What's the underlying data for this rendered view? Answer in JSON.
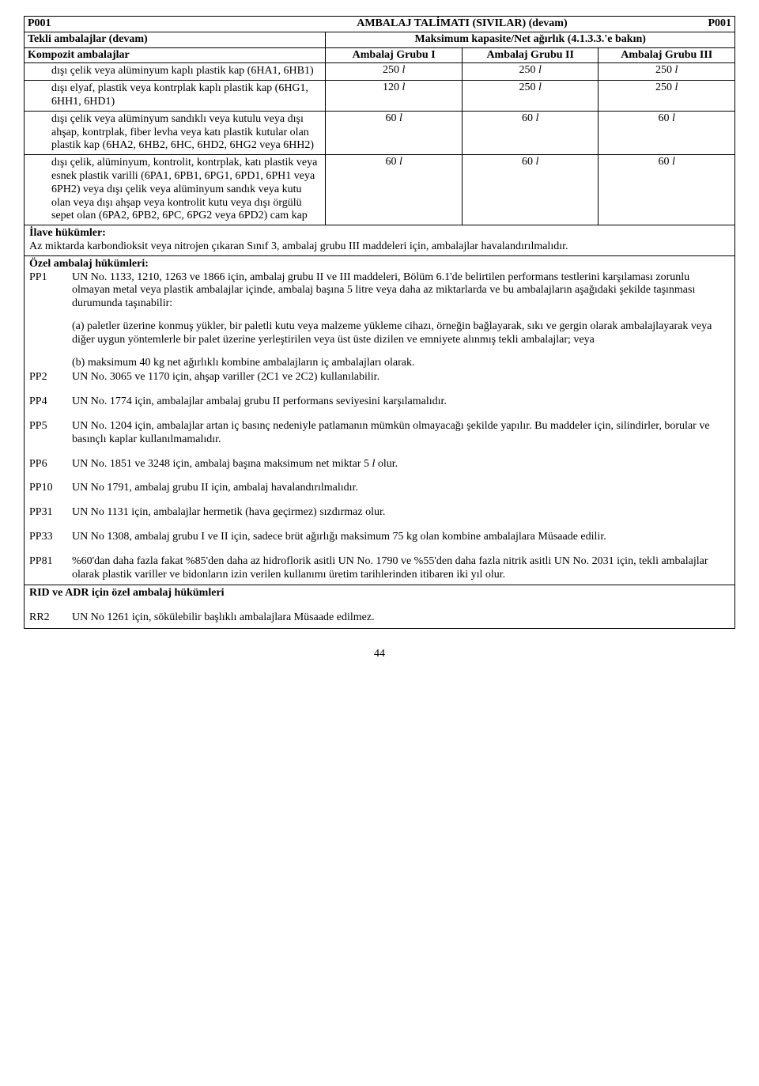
{
  "header": {
    "code_left": "P001",
    "title": "AMBALAJ TALİMATI (SIVILAR) (devam)",
    "code_right": "P001",
    "row2_left": "Tekli ambalajlar (devam)",
    "row2_right": "Maksimum kapasite/Net ağırlık (4.1.3.3.'e bakın)",
    "row3_c1": "Kompozit ambalajlar",
    "row3_c2": "Ambalaj Grubu I",
    "row3_c3": "Ambalaj Grubu II",
    "row3_c4": "Ambalaj Grubu III"
  },
  "rows": [
    {
      "desc": "dışı çelik veya alüminyum kaplı plastik kap (6HA1, 6HB1)",
      "v1": "250",
      "v2": "250",
      "v3": "250"
    },
    {
      "desc": "dışı elyaf, plastik veya kontrplak kaplı plastik kap (6HG1, 6HH1, 6HD1)",
      "v1": "120",
      "v2": "250",
      "v3": "250"
    },
    {
      "desc": "dışı çelik veya alüminyum sandıklı veya kutulu veya dışı ahşap, kontrplak, fiber levha veya katı plastik kutular olan plastik kap (6HA2, 6HB2, 6HC, 6HD2, 6HG2 veya 6HH2)",
      "v1": "60",
      "v2": "60",
      "v3": "60"
    },
    {
      "desc": "dışı çelik, alüminyum, kontrolit, kontrplak, katı plastik veya esnek plastik varilli (6PA1, 6PB1, 6PG1, 6PD1, 6PH1 veya 6PH2) veya  dışı çelik veya alüminyum sandık veya kutu olan veya dışı ahşap veya kontrolit kutu veya dışı örgülü sepet olan (6PA2, 6PB2, 6PC, 6PG2 veya 6PD2) cam kap",
      "v1": "60",
      "v2": "60",
      "v3": "60"
    }
  ],
  "ilave_title": "İlave hükümler:",
  "ilave_body": "Az miktarda karbondioksit veya nitrojen çıkaran Sınıf 3, ambalaj grubu III maddeleri için, ambalajlar havalandırılmalıdır.",
  "ozel_title": "Özel ambalaj hükümleri:",
  "pp1": {
    "label": "PP1",
    "p1": "UN No. 1133, 1210, 1263 ve 1866 için, ambalaj grubu II ve III maddeleri, Bölüm 6.1'de belirtilen performans testlerini karşılaması zorunlu olmayan metal veya plastik ambalajlar içinde, ambalaj başına 5 litre veya daha az miktarlarda ve bu ambalajların aşağıdaki şekilde taşınması durumunda taşınabilir:",
    "p2": "(a) paletler üzerine konmuş yükler, bir paletli kutu veya malzeme yükleme cihazı, örneğin bağlayarak, sıkı ve gergin olarak ambalajlayarak veya diğer uygun yöntemlerle bir palet üzerine yerleştirilen veya üst üste dizilen ve emniyete alınmış tekli ambalajlar; veya",
    "p3": "(b) maksimum 40 kg net ağırlıklı kombine ambalajların iç ambalajları olarak."
  },
  "pp_items": [
    {
      "label": "PP2",
      "text": "UN No. 3065 ve 1170 için, ahşap variller (2C1 ve 2C2) kullanılabilir."
    },
    {
      "label": "PP4",
      "text": "UN No. 1774 için, ambalajlar ambalaj grubu II performans seviyesini karşılamalıdır."
    },
    {
      "label": "PP5",
      "text": "UN No. 1204 için,  ambalajlar artan iç basınç nedeniyle patlamanın mümkün olmayacağı şekilde yapılır. Bu maddeler için, silindirler, borular ve basınçlı kaplar kullanılmamalıdır."
    },
    {
      "label": "PP6",
      "text": "UN No. 1851 ve 3248 için, ambalaj başına maksimum net miktar 5 l olur."
    },
    {
      "label": "PP10",
      "text": "UN No 1791, ambalaj grubu II için, ambalaj havalandırılmalıdır."
    },
    {
      "label": "PP31",
      "text": "UN No 1131 için, ambalajlar hermetik (hava geçirmez) sızdırmaz olur."
    },
    {
      "label": "PP33",
      "text": "UN No 1308, ambalaj grubu I ve II için, sadece brüt ağırlığı maksimum 75 kg olan kombine ambalajlara Müsaade edilir."
    },
    {
      "label": "PP81",
      "text": "%60'dan daha fazla fakat %85'den daha az hidroflorik asitli UN No. 1790 ve %55'den daha fazla nitrik asitli UN No. 2031 için, tekli ambalajlar olarak plastik variller ve bidonların izin verilen kullanımı üretim tarihlerinden itibaren iki yıl olur."
    }
  ],
  "rid_title": "RID ve ADR için özel ambalaj hükümleri",
  "rr2": {
    "label": "RR2",
    "text": "UN No 1261 için, sökülebilir başlıklı ambalajlara Müsaade edilmez."
  },
  "unit": "l",
  "page": "44"
}
